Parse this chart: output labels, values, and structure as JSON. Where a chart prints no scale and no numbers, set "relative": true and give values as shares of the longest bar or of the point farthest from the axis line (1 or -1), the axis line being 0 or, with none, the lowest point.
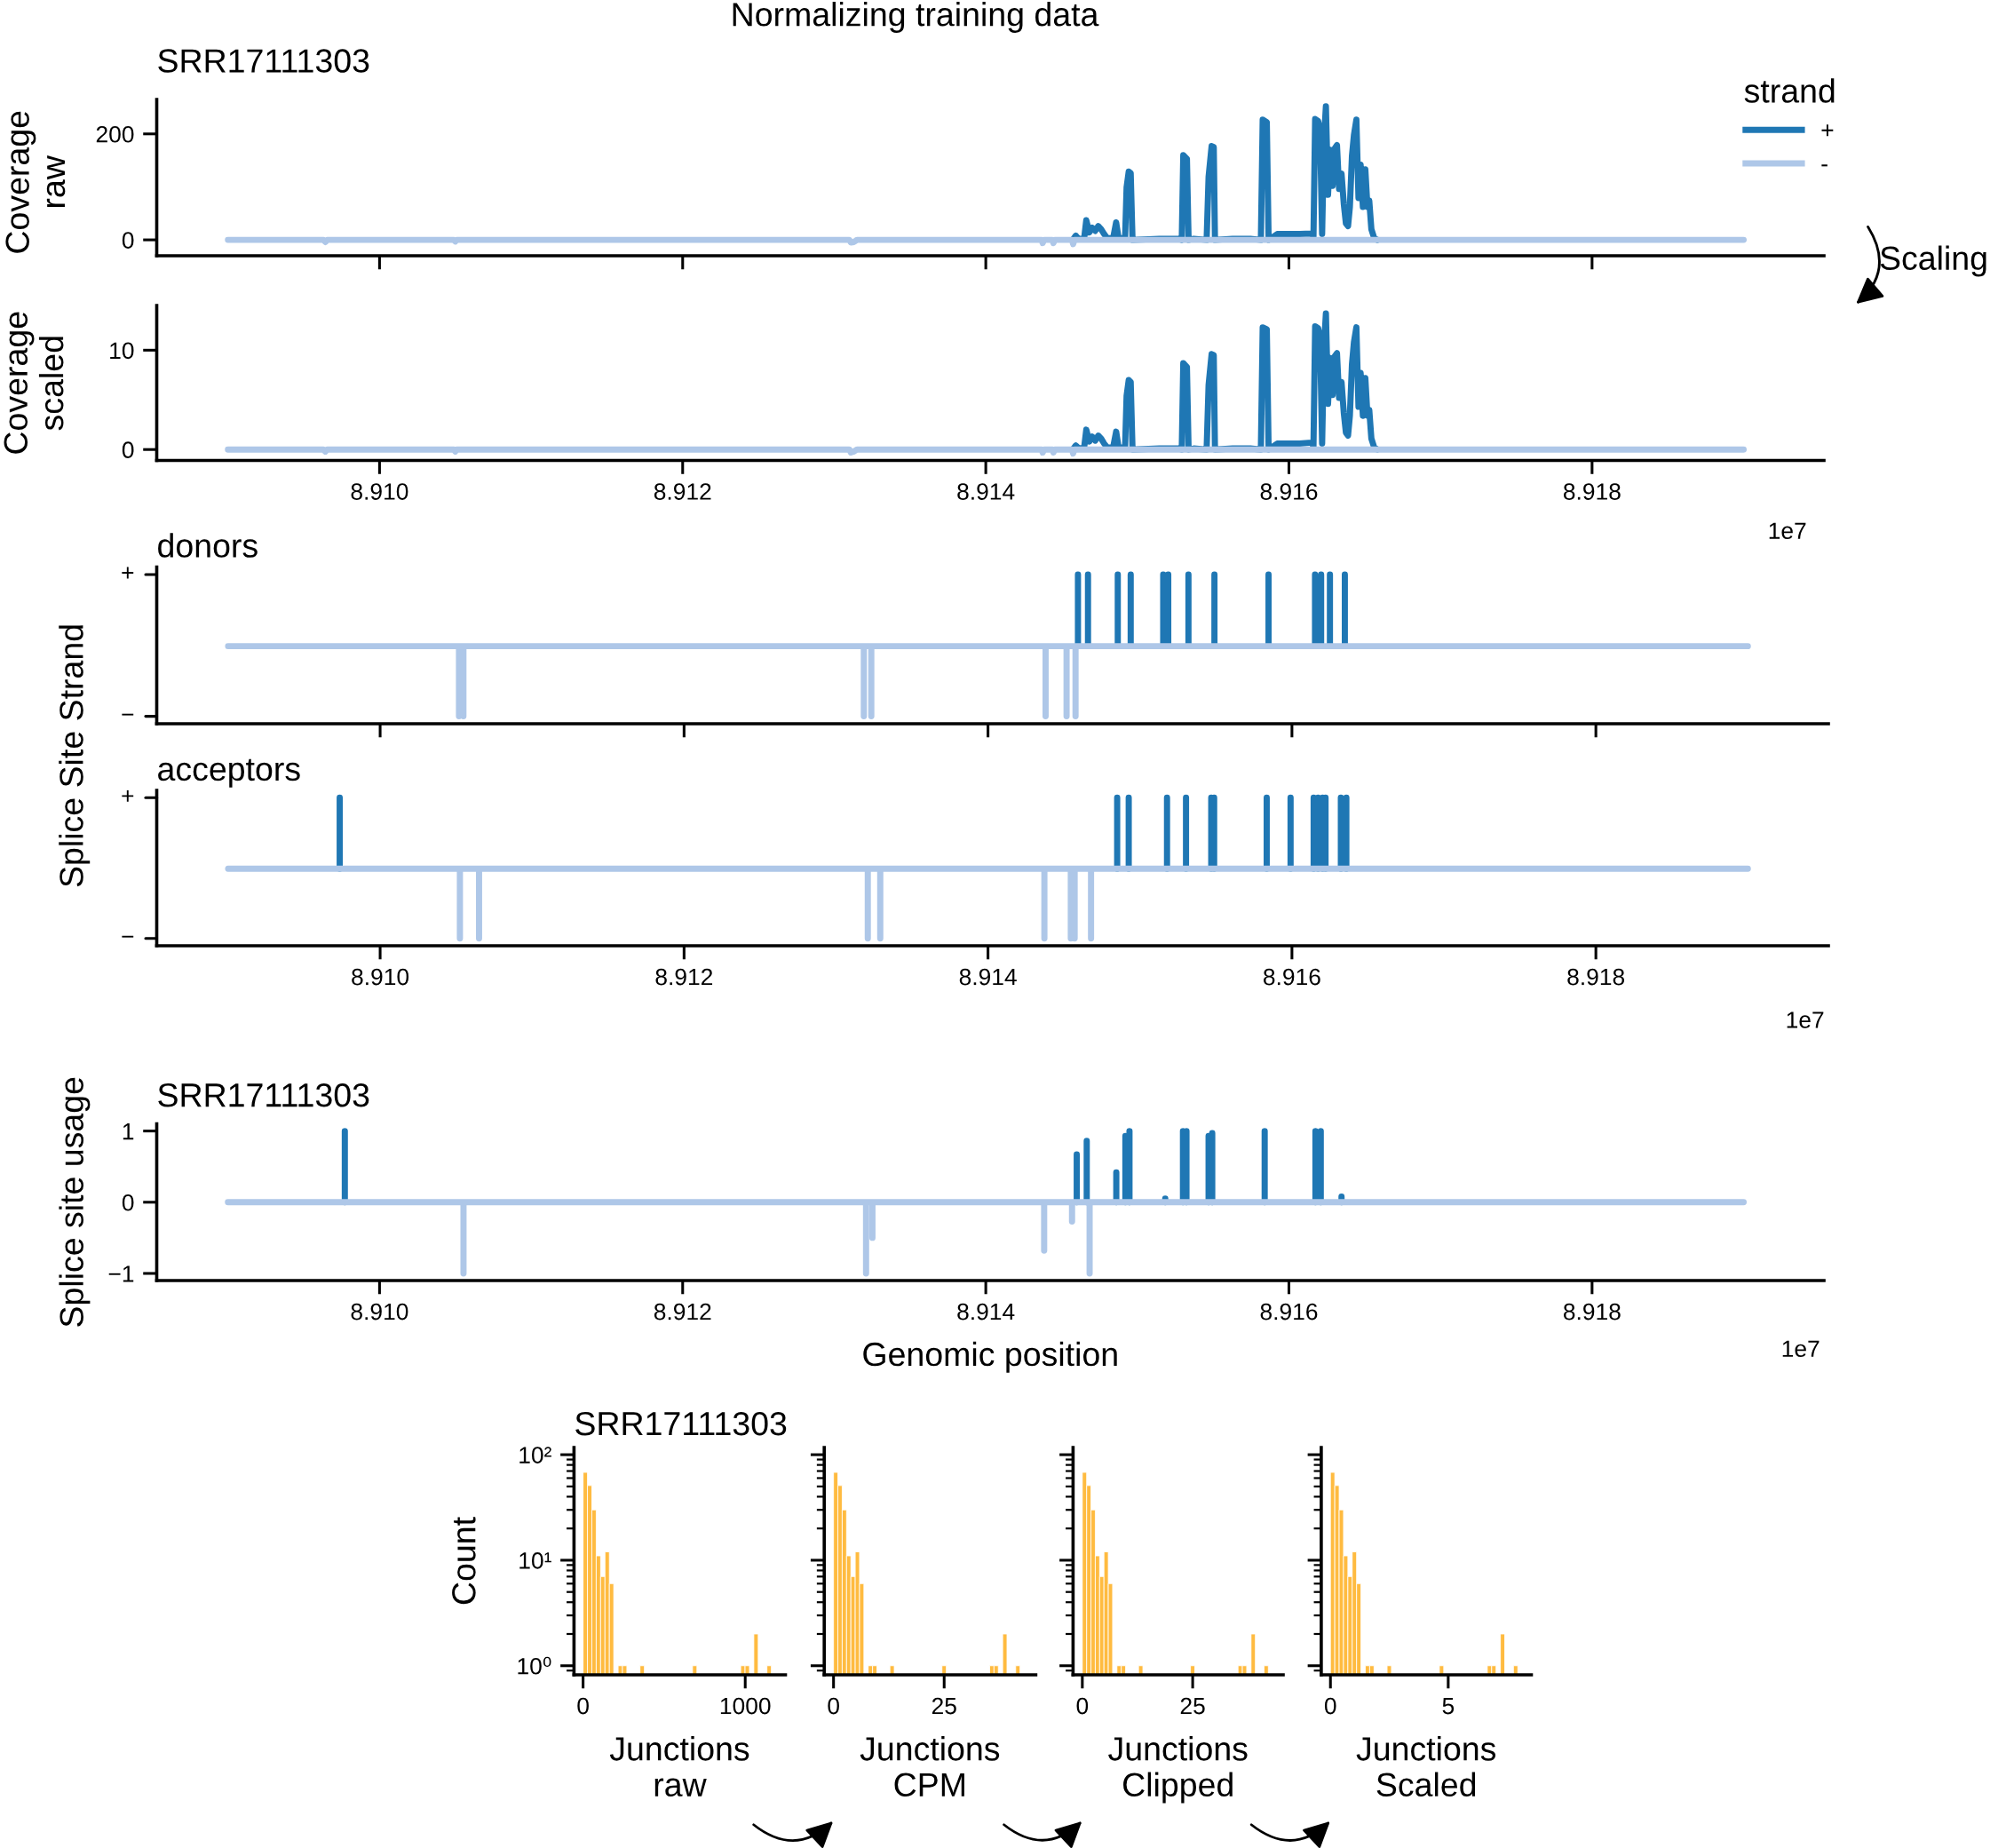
{
  "chart_data": [
    {
      "type": "line",
      "title": "Normalizing training data",
      "subtitle": "SRR17111303",
      "ylabel": "Coverage\nraw",
      "legend_title": "strand",
      "legend": "top right",
      "annotations": [
        "Scaling"
      ],
      "xlim": [
        8.90853,
        8.91953
      ],
      "xticks": [
        {
          "value": 8.91,
          "label": null
        },
        {
          "value": 8.912,
          "label": null
        },
        {
          "value": 8.914,
          "label": null
        },
        {
          "value": 8.916,
          "label": null
        },
        {
          "value": 8.918,
          "label": null
        }
      ],
      "ylim": [
        -30,
        265
      ],
      "yticks": [
        0,
        200
      ],
      "tick_labels": "y",
      "series": [
        {
          "name": "+",
          "color": "#1f77b4",
          "x": [
            8.914574,
            8.914594,
            8.914614,
            8.914649,
            8.914663,
            8.914683,
            8.914702,
            8.914722,
            8.914742,
            8.914761,
            8.914781,
            8.914801,
            8.91484,
            8.91486,
            8.914876,
            8.914919,
            8.914929,
            8.914943,
            8.914956,
            8.914968,
            8.915145,
            8.915273,
            8.915293,
            8.915303,
            8.915327,
            8.915338,
            8.915372,
            8.915457,
            8.91547,
            8.91549,
            8.915504,
            8.915512,
            8.915628,
            8.915746,
            8.915815,
            8.915827,
            8.915854,
            8.915866,
            8.915923,
            8.915992,
            8.916071,
            8.91615,
            8.916162,
            8.916173,
            8.916193,
            8.916205,
            8.916219,
            8.916232,
            8.916244,
            8.916258,
            8.916272,
            8.916288,
            8.916303,
            8.916317,
            8.916331,
            8.916347,
            8.916362,
            8.916376,
            8.91639,
            8.916402,
            8.916416,
            8.916429,
            8.916445,
            8.916459,
            8.916473,
            8.916488,
            8.916504,
            8.916518,
            8.91653,
            8.916544,
            8.916563,
            8.916583
          ],
          "values": [
            0,
            8,
            1,
            3,
            37,
            14,
            23,
            17,
            26,
            20,
            11,
            3,
            3,
            33,
            3,
            3,
            99,
            129,
            126,
            0,
            2,
            2,
            0,
            160,
            153,
            0,
            2,
            0,
            119,
            177,
            175,
            0,
            2,
            2,
            0,
            227,
            222,
            0,
            11,
            11,
            11,
            12,
            6,
            228,
            224,
            210,
            11,
            193,
            252,
            85,
            170,
            102,
            173,
            179,
            96,
            125,
            68,
            31,
            26,
            62,
            159,
            198,
            227,
            79,
            142,
            62,
            133,
            62,
            74,
            20,
            3,
            0
          ]
        },
        {
          "name": "-",
          "color": "#aec7e8",
          "x": [
            8.909,
            8.90963,
            8.909643,
            8.909655,
            8.91049,
            8.9105,
            8.91051,
            8.9131,
            8.91311,
            8.91313,
            8.91315,
            8.91437,
            8.914375,
            8.914385,
            8.91444,
            8.914446,
            8.914455,
            8.91457,
            8.914576,
            8.914585,
            8.919
          ],
          "values": [
            0,
            0,
            -4,
            0,
            0,
            -3,
            0,
            0,
            -5,
            -4,
            0,
            0,
            -6,
            0,
            0,
            -6,
            0,
            0,
            -8,
            0,
            0
          ]
        }
      ]
    },
    {
      "type": "line",
      "ylabel": "Coverage\nscaled",
      "annotations": [
        "1e7"
      ],
      "xlim": [
        8.90853,
        8.91953
      ],
      "xticks": [
        {
          "value": 8.91,
          "label": "8.910"
        },
        8.912,
        8.914,
        8.916,
        8.918
      ],
      "ylim": [
        -1.1,
        14.5
      ],
      "yticks": [
        0,
        10
      ],
      "series": [
        {
          "color": "#1f77b4",
          "x": [
            8.914574,
            8.914594,
            8.914614,
            8.914649,
            8.914663,
            8.914683,
            8.914702,
            8.914722,
            8.914742,
            8.914761,
            8.914781,
            8.914801,
            8.91484,
            8.91486,
            8.914876,
            8.914919,
            8.914929,
            8.914943,
            8.914956,
            8.914968,
            8.915145,
            8.915273,
            8.915293,
            8.915303,
            8.915327,
            8.915338,
            8.915372,
            8.915457,
            8.91547,
            8.91549,
            8.915504,
            8.915512,
            8.915628,
            8.915746,
            8.915815,
            8.915827,
            8.915854,
            8.915866,
            8.915923,
            8.915992,
            8.916071,
            8.91615,
            8.916162,
            8.916173,
            8.916193,
            8.916205,
            8.916219,
            8.916232,
            8.916244,
            8.916258,
            8.916272,
            8.916288,
            8.916303,
            8.916317,
            8.916331,
            8.916347,
            8.916362,
            8.916376,
            8.91639,
            8.916402,
            8.916416,
            8.916429,
            8.916445,
            8.916459,
            8.916473,
            8.916488,
            8.916504,
            8.916518,
            8.91653,
            8.916544,
            8.916563,
            8.916583
          ],
          "values": [
            0,
            0.4,
            0.1,
            0.2,
            2.0,
            0.8,
            1.3,
            0.9,
            1.4,
            1.1,
            0.6,
            0.2,
            0.2,
            1.8,
            0.2,
            0.2,
            5.4,
            7.0,
            6.8,
            0,
            0.1,
            0.1,
            0,
            8.7,
            8.3,
            0,
            0.1,
            0,
            6.5,
            9.6,
            9.5,
            0,
            0.1,
            0.1,
            0,
            12.3,
            12.1,
            0,
            0.6,
            0.6,
            0.6,
            0.7,
            0.3,
            12.4,
            12.2,
            11.4,
            0.6,
            10.5,
            13.7,
            4.6,
            9.2,
            5.5,
            9.4,
            9.7,
            5.2,
            6.8,
            3.7,
            1.7,
            1.4,
            3.4,
            8.6,
            10.8,
            12.3,
            4.3,
            7.7,
            3.4,
            7.2,
            3.4,
            4.0,
            1.1,
            0.2,
            0
          ]
        },
        {
          "color": "#aec7e8",
          "x": [
            8.909,
            8.90963,
            8.909643,
            8.909655,
            8.91049,
            8.9105,
            8.91051,
            8.9131,
            8.91311,
            8.91313,
            8.91315,
            8.91437,
            8.914375,
            8.914385,
            8.91444,
            8.914446,
            8.914455,
            8.91457,
            8.914576,
            8.914585,
            8.919
          ],
          "values": [
            0,
            0,
            -0.2,
            0,
            0,
            -0.2,
            0,
            0,
            -0.3,
            -0.2,
            0,
            0,
            -0.3,
            0,
            0,
            -0.3,
            0,
            0,
            -0.4,
            0,
            0
          ]
        }
      ]
    },
    {
      "type": "line",
      "title": "donors",
      "ylabel": "Splice Site Strand",
      "relative": true,
      "annotations": [
        "+",
        "−"
      ],
      "xlim": [
        8.90853,
        8.91953
      ],
      "xticks": [
        {
          "value": 8.91,
          "label": null
        },
        {
          "value": 8.912,
          "label": null
        },
        {
          "value": 8.914,
          "label": null
        },
        {
          "value": 8.916,
          "label": null
        },
        {
          "value": 8.918,
          "label": null
        }
      ],
      "tick_labels": false,
      "series": [
        {
          "color": "#1f77b4",
          "x": [
            8.914592,
            8.914592,
            null,
            8.914658,
            8.914658,
            null,
            8.914854,
            8.914854,
            null,
            8.914939,
            8.914939,
            null,
            8.915153,
            8.915153,
            null,
            8.915186,
            8.915186,
            null,
            8.915319,
            8.915319,
            null,
            8.91549,
            8.91549,
            null,
            8.915846,
            8.915846,
            null,
            8.916152,
            8.916152,
            null,
            8.916192,
            8.916192,
            null,
            8.91625,
            8.91625,
            null,
            8.916348,
            8.916348,
            null
          ],
          "values": [
            0.52,
            1,
            null,
            0.52,
            1,
            null,
            0.52,
            1,
            null,
            0.52,
            1,
            null,
            0.52,
            1,
            null,
            0.52,
            1,
            null,
            0.52,
            1,
            null,
            0.52,
            1,
            null,
            0.52,
            1,
            null,
            0.52,
            1,
            null,
            0.52,
            1,
            null,
            0.52,
            1,
            null,
            0.52,
            1,
            null
          ]
        },
        {
          "color": "#aec7e8",
          "x": [
            8.909,
            8.910519,
            8.910519,
            8.910519,
            8.910548,
            8.910548,
            8.910548,
            8.913183,
            8.913183,
            8.913183,
            8.913232,
            8.913232,
            8.913232,
            8.914379,
            8.914379,
            8.914379,
            8.914517,
            8.914517,
            8.914517,
            8.914576,
            8.914576,
            8.914576,
            8.919
          ],
          "values": [
            0.52,
            0.52,
            0.05,
            0.52,
            0.52,
            0.05,
            0.52,
            0.52,
            0.05,
            0.52,
            0.52,
            0.05,
            0.52,
            0.52,
            0.05,
            0.52,
            0.52,
            0.05,
            0.52,
            0.52,
            0.05,
            0.52,
            0.52
          ]
        }
      ]
    },
    {
      "type": "line",
      "title": "acceptors",
      "relative": true,
      "annotations": [
        "+",
        "−",
        "1e7"
      ],
      "xlim": [
        8.90853,
        8.91953
      ],
      "xticks": [
        {
          "value": 8.91,
          "label": "8.910"
        },
        8.912,
        8.914,
        8.916,
        8.918
      ],
      "tick_labels": "x",
      "series": [
        {
          "color": "#1f77b4",
          "x": [
            8.909734,
            8.909734,
            null,
            8.91485,
            8.91485,
            null,
            8.914926,
            8.914926,
            null,
            8.915178,
            8.915178,
            null,
            8.915303,
            8.915303,
            null,
            8.915469,
            8.915469,
            null,
            8.915488,
            8.915488,
            null,
            8.915834,
            8.915834,
            null,
            8.915991,
            8.915991,
            null,
            8.916143,
            8.916143,
            null,
            8.916172,
            8.916172,
            null,
            8.916202,
            8.916202,
            null,
            8.916221,
            8.916221,
            null,
            8.916322,
            8.916322,
            null,
            8.916358,
            8.916358,
            null
          ],
          "values": [
            0.52,
            1,
            null,
            0.52,
            1,
            null,
            0.52,
            1,
            null,
            0.52,
            1,
            null,
            0.52,
            1,
            null,
            0.52,
            1,
            null,
            0.52,
            1,
            null,
            0.52,
            1,
            null,
            0.52,
            1,
            null,
            0.52,
            1,
            null,
            0.52,
            1,
            null,
            0.52,
            1,
            null,
            0.52,
            1,
            null,
            0.52,
            1,
            null,
            0.52,
            1,
            null
          ]
        },
        {
          "color": "#aec7e8",
          "x": [
            8.909,
            8.910525,
            8.910525,
            8.910525,
            8.910651,
            8.910651,
            8.910651,
            8.913209,
            8.913209,
            8.913209,
            8.913291,
            8.913291,
            8.913291,
            8.914371,
            8.914371,
            8.914371,
            8.914545,
            8.914545,
            8.914545,
            8.91457,
            8.91457,
            8.91457,
            8.914678,
            8.914678,
            8.914678,
            8.919
          ],
          "values": [
            0.52,
            0.52,
            0.05,
            0.52,
            0.52,
            0.05,
            0.52,
            0.52,
            0.05,
            0.52,
            0.52,
            0.05,
            0.52,
            0.52,
            0.05,
            0.52,
            0.52,
            0.05,
            0.52,
            0.52,
            0.05,
            0.52,
            0.52,
            0.05,
            0.52,
            0.52
          ]
        }
      ]
    },
    {
      "type": "line",
      "title": "SRR17111303",
      "ylabel": "Splice site usage",
      "xlabel": "Genomic position",
      "annotations": [
        "1e7"
      ],
      "xlim": [
        8.90853,
        8.91953
      ],
      "xticks": [
        {
          "value": 8.91,
          "label": "8.910"
        },
        8.912,
        8.914,
        8.916,
        8.918
      ],
      "ylim": [
        -1.1,
        1.1
      ],
      "yticks": [
        {
          "value": -1,
          "label": "−1"
        },
        0,
        1
      ],
      "series": [
        {
          "color": "#1f77b4",
          "x": [
            8.909771,
            8.909771,
            null,
            8.9146,
            8.9146,
            null,
            8.914666,
            8.914666,
            null,
            8.914861,
            8.914861,
            null,
            8.914921,
            8.914921,
            null,
            8.914948,
            8.914948,
            null,
            8.915184,
            8.915184,
            null,
            8.915301,
            8.915301,
            null,
            8.915324,
            8.915324,
            null,
            8.91547,
            8.91547,
            null,
            8.915494,
            8.915494,
            null,
            8.91584,
            8.91584,
            null,
            8.916175,
            8.916175,
            null,
            8.91621,
            8.91621,
            null,
            8.916347,
            8.916347,
            null
          ],
          "values": [
            0,
            1,
            null,
            0,
            0.67,
            null,
            0,
            0.86,
            null,
            0,
            0.42,
            null,
            0,
            0.93,
            null,
            0,
            1,
            null,
            0,
            0.05,
            null,
            0,
            1,
            null,
            0,
            1,
            null,
            0,
            0.93,
            null,
            0,
            0.97,
            null,
            0,
            1,
            null,
            0,
            1,
            null,
            0,
            1,
            null,
            0,
            0.08,
            null
          ]
        },
        {
          "color": "#aec7e8",
          "x": [
            8.909,
            8.910554,
            8.910554,
            8.910554,
            8.91321,
            8.91321,
            8.91321,
            8.913252,
            8.913252,
            8.913252,
            8.914385,
            8.914385,
            8.914385,
            8.914569,
            8.914569,
            8.914569,
            8.914685,
            8.914685,
            8.914685,
            8.919
          ],
          "values": [
            0,
            0,
            -1,
            0,
            0,
            -1,
            0,
            0,
            -0.5,
            0,
            0,
            -0.68,
            0,
            0,
            -0.27,
            0,
            0,
            -1,
            0,
            0
          ]
        }
      ]
    },
    {
      "type": "histogram",
      "title": "SRR17111303",
      "ylabel": "Count",
      "xlabel": "Junctions\nraw",
      "color": "#ffbb40",
      "log": true,
      "xlim": [
        -56,
        1248
      ],
      "xticks": [
        0,
        1000
      ],
      "ylim": [
        0.82,
        117
      ],
      "yticks": [
        {
          "value": 1,
          "label": "10⁰"
        },
        {
          "value": 10,
          "label": "10¹"
        },
        {
          "value": 100,
          "label": "10²"
        }
      ],
      "bins": [
        0,
        27,
        54,
        81,
        108,
        135,
        162,
        189,
        216,
        243,
        270,
        297,
        324,
        351,
        378,
        405,
        432,
        459,
        486,
        513,
        540,
        567,
        594,
        621,
        648,
        675,
        702,
        729,
        756,
        783,
        810,
        837,
        864,
        891,
        918,
        945,
        972,
        999,
        1026,
        1053,
        1080,
        1107,
        1134,
        1161
      ],
      "values": [
        68,
        51,
        30,
        11,
        7,
        12,
        6,
        null,
        1,
        1,
        null,
        null,
        null,
        1,
        null,
        null,
        null,
        null,
        null,
        null,
        null,
        null,
        null,
        null,
        null,
        1,
        null,
        null,
        null,
        null,
        null,
        null,
        null,
        null,
        null,
        null,
        1,
        1,
        null,
        2,
        null,
        null,
        1
      ]
    },
    {
      "type": "histogram",
      "xlabel": "Junctions\nCPM",
      "color": "#ffbb40",
      "log": true,
      "xlim": [
        -2.1,
        45.7
      ],
      "xticks": [
        0,
        25
      ],
      "ylim": [
        0.82,
        117
      ],
      "yticks": [
        {
          "value": 1,
          "label": null
        },
        {
          "value": 10,
          "label": null
        },
        {
          "value": 100,
          "label": null
        }
      ],
      "tick_labels": "x",
      "bins": [
        0,
        0.98,
        1.96,
        2.94,
        3.92,
        4.9,
        5.88,
        6.86,
        7.84,
        8.82,
        9.8,
        10.78,
        11.76,
        12.74,
        13.72,
        14.7,
        15.68,
        16.66,
        17.64,
        18.62,
        19.6,
        20.58,
        21.56,
        22.54,
        23.52,
        24.5,
        25.48,
        26.46,
        27.44,
        28.42,
        29.4,
        30.38,
        31.36,
        32.34,
        33.32,
        34.3,
        35.28,
        36.26,
        37.24,
        38.22,
        39.2,
        40.18,
        41.16,
        42.14
      ],
      "values": [
        68,
        51,
        30,
        11,
        7,
        12,
        6,
        null,
        1,
        1,
        null,
        null,
        null,
        1,
        null,
        null,
        null,
        null,
        null,
        null,
        null,
        null,
        null,
        null,
        null,
        1,
        null,
        null,
        null,
        null,
        null,
        null,
        null,
        null,
        null,
        null,
        1,
        1,
        null,
        2,
        null,
        null,
        1
      ]
    },
    {
      "type": "histogram",
      "xlabel": "Junctions\nClipped",
      "color": "#ffbb40",
      "log": true,
      "xlim": [
        -2.1,
        45.5
      ],
      "xticks": [
        0,
        25
      ],
      "ylim": [
        0.82,
        117
      ],
      "yticks": [
        {
          "value": 1,
          "label": null
        },
        {
          "value": 10,
          "label": null
        },
        {
          "value": 100,
          "label": null
        }
      ],
      "tick_labels": "x",
      "bins": [
        0,
        0.98,
        1.96,
        2.94,
        3.92,
        4.9,
        5.88,
        6.86,
        7.84,
        8.82,
        9.8,
        10.78,
        11.76,
        12.74,
        13.72,
        14.7,
        15.68,
        16.66,
        17.64,
        18.62,
        19.6,
        20.58,
        21.56,
        22.54,
        23.52,
        24.5,
        25.48,
        26.46,
        27.44,
        28.42,
        29.4,
        30.38,
        31.36,
        32.34,
        33.32,
        34.3,
        35.28,
        36.26,
        37.24,
        38.22,
        39.2,
        40.18,
        41.16,
        42.14
      ],
      "values": [
        68,
        51,
        30,
        11,
        7,
        12,
        6,
        null,
        1,
        1,
        null,
        null,
        null,
        1,
        null,
        null,
        null,
        null,
        null,
        null,
        null,
        null,
        null,
        null,
        null,
        1,
        null,
        null,
        null,
        null,
        null,
        null,
        null,
        null,
        null,
        null,
        1,
        1,
        null,
        2,
        null,
        null,
        1
      ]
    },
    {
      "type": "histogram",
      "xlabel": "Junctions\nScaled",
      "color": "#ffbb40",
      "log": true,
      "xlim": [
        -0.39,
        8.53
      ],
      "xticks": [
        0,
        5
      ],
      "ylim": [
        0.82,
        117
      ],
      "yticks": [
        {
          "value": 1,
          "label": null
        },
        {
          "value": 10,
          "label": null
        },
        {
          "value": 100,
          "label": null
        }
      ],
      "tick_labels": "x",
      "bins": [
        0,
        0.185,
        0.37,
        0.555,
        0.74,
        0.925,
        1.11,
        1.295,
        1.48,
        1.665,
        1.85,
        2.035,
        2.22,
        2.405,
        2.59,
        2.775,
        2.96,
        3.145,
        3.33,
        3.515,
        3.7,
        3.885,
        4.07,
        4.255,
        4.44,
        4.625,
        4.81,
        4.995,
        5.18,
        5.365,
        5.55,
        5.735,
        5.92,
        6.105,
        6.29,
        6.475,
        6.66,
        6.845,
        7.03,
        7.215,
        7.4,
        7.585,
        7.77,
        7.955
      ],
      "values": [
        68,
        51,
        30,
        11,
        7,
        12,
        6,
        null,
        1,
        1,
        null,
        null,
        null,
        1,
        null,
        null,
        null,
        null,
        null,
        null,
        null,
        null,
        null,
        null,
        null,
        1,
        null,
        null,
        null,
        null,
        null,
        null,
        null,
        null,
        null,
        null,
        1,
        1,
        null,
        2,
        null,
        null,
        1
      ]
    }
  ]
}
